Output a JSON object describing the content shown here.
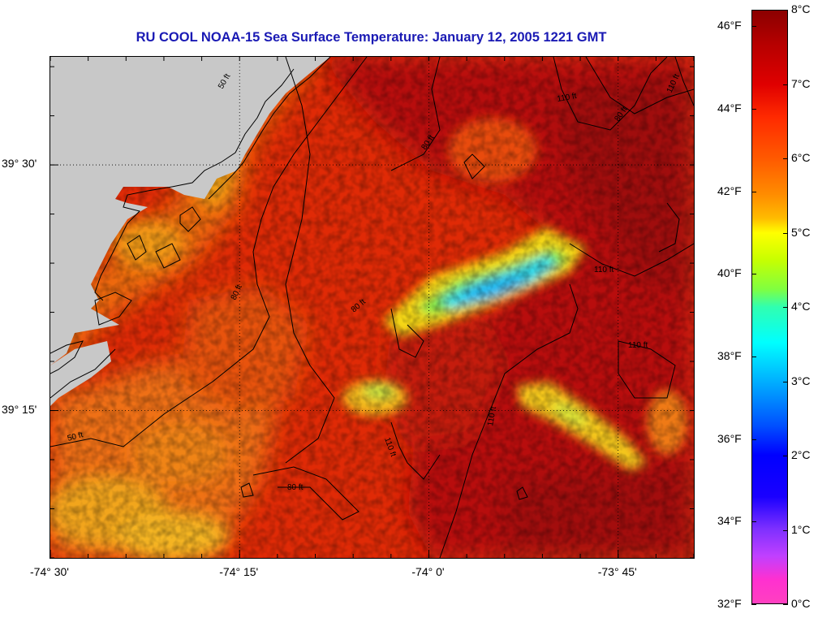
{
  "title": "RU COOL  NOAA-15  Sea Surface Temperature:  January 12, 2005 1221 GMT",
  "axes": {
    "x_labels": [
      {
        "text": "-74° 30'",
        "value": -74.5
      },
      {
        "text": "-74° 15'",
        "value": -74.25
      },
      {
        "text": "-74° 0'",
        "value": -74.0
      },
      {
        "text": "-73° 45'",
        "value": -73.75
      }
    ],
    "y_labels": [
      {
        "text": "39° 30'",
        "value": 39.5
      },
      {
        "text": "39° 15'",
        "value": 39.25
      }
    ],
    "lon_range": [
      -74.5,
      -73.65
    ],
    "lat_range": [
      39.1,
      39.61
    ]
  },
  "colorbar": {
    "fahrenheit_labels": [
      "46°F",
      "44°F",
      "42°F",
      "40°F",
      "38°F",
      "36°F",
      "34°F",
      "32°F"
    ],
    "celsius_labels": [
      "8°C",
      "7°C",
      "6°C",
      "5°C",
      "4°C",
      "3°C",
      "2°C",
      "1°C",
      "0°C"
    ],
    "range_c": [
      0,
      8
    ]
  },
  "contour_labels": [
    "80 ft",
    "80 ft",
    "80 ft",
    "80 ft",
    "80 ft",
    "110 ft",
    "110 ft",
    "110 ft",
    "110 ft",
    "110 ft",
    "110 ft",
    "50 ft",
    "50 ft"
  ],
  "colors": {
    "land": "#c8c8c8",
    "title": "#1a1ab4"
  }
}
